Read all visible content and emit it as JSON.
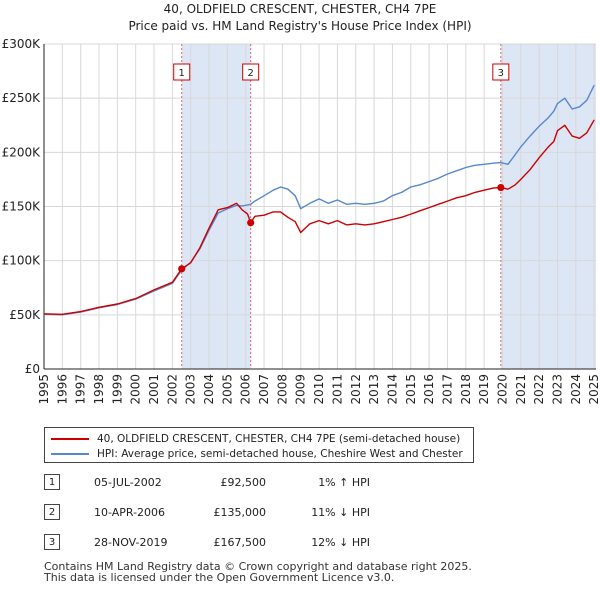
{
  "chart_data": {
    "type": "line",
    "title": "40, OLDFIELD CRESCENT, CHESTER, CH4 7PE",
    "subtitle": "Price paid vs. HM Land Registry's House Price Index (HPI)",
    "xlabel": "",
    "ylabel": "",
    "xlim": [
      1995,
      2025.1
    ],
    "ylim": [
      0,
      300000
    ],
    "y_ticks": [
      0,
      50000,
      100000,
      150000,
      200000,
      250000,
      300000
    ],
    "y_tick_labels": [
      "£0",
      "£50K",
      "£100K",
      "£150K",
      "£200K",
      "£250K",
      "£300K"
    ],
    "x_ticks": [
      "1995",
      "1996",
      "1997",
      "1998",
      "1999",
      "2000",
      "2001",
      "2002",
      "2003",
      "2004",
      "2005",
      "2006",
      "2007",
      "2008",
      "2009",
      "2010",
      "2011",
      "2012",
      "2013",
      "2014",
      "2015",
      "2016",
      "2017",
      "2018",
      "2019",
      "2020",
      "2021",
      "2022",
      "2023",
      "2024",
      "2025"
    ],
    "grid": true,
    "series": [
      {
        "name": "40, OLDFIELD CRESCENT, CHESTER, CH4 7PE (semi-detached house)",
        "color": "#cc0000",
        "x": [
          1995.0,
          1996.0,
          1997.0,
          1998.0,
          1999.0,
          2000.0,
          2001.0,
          2002.0,
          2002.51,
          2003.0,
          2003.5,
          2004.0,
          2004.5,
          2005.0,
          2005.5,
          2005.8,
          2006.1,
          2006.27,
          2006.5,
          2007.0,
          2007.5,
          2007.9,
          2008.3,
          2008.7,
          2009.0,
          2009.5,
          2010.0,
          2010.5,
          2011.0,
          2011.5,
          2012.0,
          2012.5,
          2013.0,
          2013.5,
          2014.0,
          2014.5,
          2015.0,
          2015.5,
          2016.0,
          2016.5,
          2017.0,
          2017.5,
          2018.0,
          2018.5,
          2019.0,
          2019.5,
          2019.91,
          2020.3,
          2020.7,
          2021.0,
          2021.5,
          2022.0,
          2022.5,
          2022.8,
          2023.0,
          2023.4,
          2023.8,
          2024.2,
          2024.6,
          2025.0
        ],
        "y": [
          51000,
          50500,
          53000,
          57000,
          60000,
          65000,
          73000,
          80000,
          92500,
          98000,
          112000,
          130000,
          147000,
          149000,
          153000,
          147000,
          143000,
          135000,
          141000,
          142000,
          145000,
          145000,
          140000,
          136000,
          126000,
          134000,
          137000,
          134000,
          137000,
          133000,
          134000,
          133000,
          134000,
          136000,
          138000,
          140000,
          143000,
          146000,
          149000,
          152000,
          155000,
          158000,
          160000,
          163000,
          165000,
          167000,
          167500,
          166000,
          170000,
          175000,
          184000,
          195000,
          205000,
          210000,
          220000,
          225000,
          215000,
          213000,
          218000,
          230000
        ]
      },
      {
        "name": "HPI: Average price, semi-detached house, Cheshire West and Chester",
        "color": "#5588cc",
        "x": [
          1995.0,
          1996.0,
          1997.0,
          1998.0,
          1999.0,
          2000.0,
          2001.0,
          2002.0,
          2002.51,
          2003.0,
          2003.5,
          2004.0,
          2004.5,
          2005.0,
          2005.5,
          2005.8,
          2006.1,
          2006.27,
          2006.5,
          2007.0,
          2007.5,
          2007.9,
          2008.3,
          2008.7,
          2009.0,
          2009.5,
          2010.0,
          2010.5,
          2011.0,
          2011.5,
          2012.0,
          2012.5,
          2013.0,
          2013.5,
          2014.0,
          2014.5,
          2015.0,
          2015.5,
          2016.0,
          2016.5,
          2017.0,
          2017.5,
          2018.0,
          2018.5,
          2019.0,
          2019.5,
          2019.91,
          2020.3,
          2020.7,
          2021.0,
          2021.5,
          2022.0,
          2022.5,
          2022.8,
          2023.0,
          2023.4,
          2023.8,
          2024.2,
          2024.6,
          2025.0
        ],
        "y": [
          50500,
          50000,
          52500,
          56500,
          59500,
          64500,
          72000,
          79000,
          91500,
          98500,
          111000,
          128000,
          144000,
          148000,
          151000,
          150500,
          151500,
          152000,
          155000,
          160000,
          165000,
          168000,
          166000,
          160000,
          148000,
          153000,
          157000,
          153000,
          156000,
          152000,
          153000,
          152000,
          153000,
          155000,
          160000,
          163000,
          168000,
          170000,
          173000,
          176000,
          180000,
          183000,
          186000,
          188000,
          189000,
          190000,
          190500,
          189000,
          198000,
          205000,
          215000,
          224000,
          232000,
          238000,
          245000,
          250000,
          240000,
          242000,
          248000,
          262000
        ]
      }
    ],
    "transactions": [
      {
        "id": "1",
        "x": 2002.51,
        "price_value": 92500,
        "date": "05-JUL-2002",
        "price": "£92,500",
        "hpi": "1% ↑ HPI"
      },
      {
        "id": "2",
        "x": 2006.27,
        "price_value": 135000,
        "date": "10-APR-2006",
        "price": "£135,000",
        "hpi": "11% ↓ HPI"
      },
      {
        "id": "3",
        "x": 2019.91,
        "price_value": 167500,
        "date": "28-NOV-2019",
        "price": "£167,500",
        "hpi": "12% ↓ HPI"
      }
    ]
  },
  "footer": {
    "line1": "Contains HM Land Registry data © Crown copyright and database right 2025.",
    "line2": "This data is licensed under the Open Government Licence v3.0."
  },
  "colors": {
    "property_line": "#cc0000",
    "hpi_line": "#5588cc",
    "shade": "#dde6f5",
    "grid": "#d8d8d8"
  }
}
